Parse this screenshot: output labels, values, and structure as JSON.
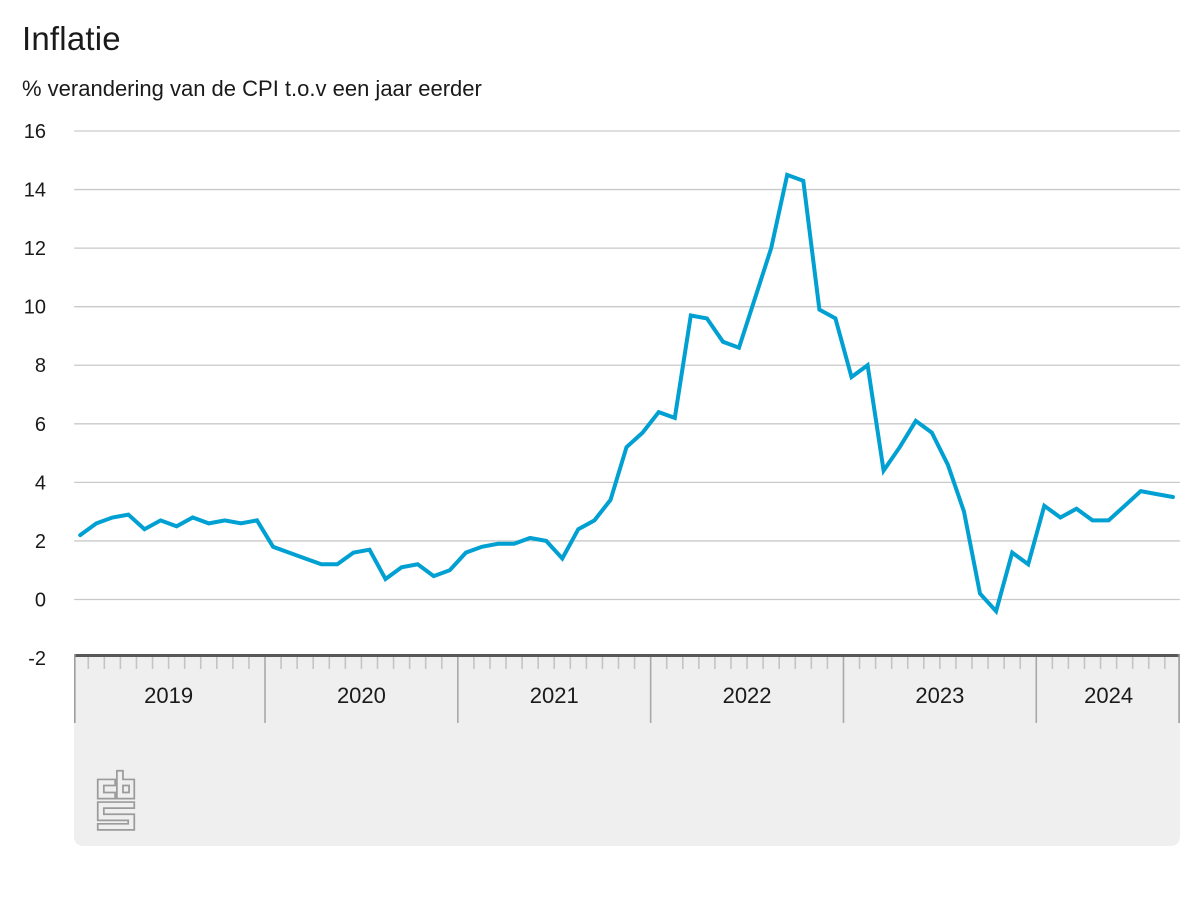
{
  "page": {
    "title": "Inflatie",
    "subtitle": "% verandering van de CPI t.o.v een jaar eerder"
  },
  "colors": {
    "line": "#00a0d2",
    "gridline": "#c9c9c9",
    "band_background": "#efefef",
    "band_top_border": "#58585a",
    "tick_minor": "#c4c4c4",
    "tick_major": "#a9a9a9",
    "band_edge": "#9e9e9e",
    "text": "#1a1a1a",
    "logo": "#9b9b9b"
  },
  "branding": {
    "logo_name": "cbs-logo"
  },
  "chart_data": {
    "type": "line",
    "title": "Inflatie",
    "subtitle": "% verandering van de CPI t.o.v een jaar eerder",
    "unit": "% (year-on-year change of CPI)",
    "x_start": "2019-01",
    "x_end": "2024-09",
    "x_tick_years": [
      "2019",
      "2020",
      "2021",
      "2022",
      "2023",
      "2024"
    ],
    "y_ticks": [
      16,
      14,
      12,
      10,
      8,
      6,
      4,
      2,
      0,
      -2
    ],
    "ylim": [
      -2,
      16
    ],
    "grid": "horizontal",
    "legend": "none",
    "series": [
      {
        "name": "Inflatie (CPI)",
        "start_year": 2019,
        "start_month": 1,
        "values": [
          2.2,
          2.6,
          2.8,
          2.9,
          2.4,
          2.7,
          2.5,
          2.8,
          2.6,
          2.7,
          2.6,
          2.7,
          1.8,
          1.6,
          1.4,
          1.2,
          1.2,
          1.6,
          1.7,
          0.7,
          1.1,
          1.2,
          0.8,
          1.0,
          1.6,
          1.8,
          1.9,
          1.9,
          2.1,
          2.0,
          1.4,
          2.4,
          2.7,
          3.4,
          5.2,
          5.7,
          6.4,
          6.2,
          9.7,
          9.6,
          8.8,
          8.6,
          10.3,
          12.0,
          14.5,
          14.3,
          9.9,
          9.6,
          7.6,
          8.0,
          4.4,
          5.2,
          6.1,
          5.7,
          4.6,
          3.0,
          0.2,
          -0.4,
          1.6,
          1.2,
          3.2,
          2.8,
          3.1,
          2.7,
          2.7,
          3.2,
          3.7,
          3.6,
          3.5
        ]
      }
    ]
  }
}
